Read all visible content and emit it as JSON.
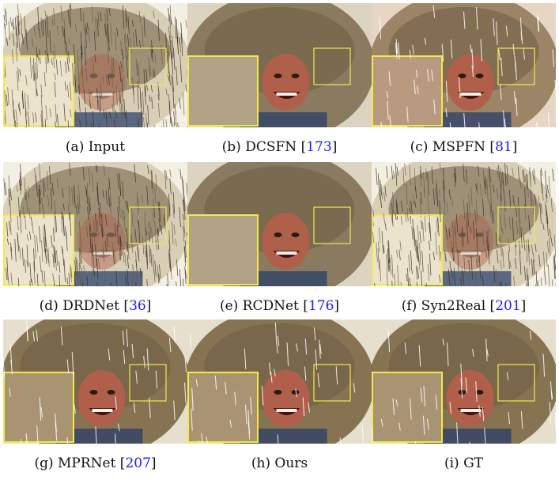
{
  "figure": {
    "panels": [
      {
        "id": "a",
        "label": "(a) Input",
        "name": "Input",
        "citation": "",
        "style": "input"
      },
      {
        "id": "b",
        "label": "(b) DCSFN",
        "name": "DCSFN",
        "citation": "173",
        "style": "smooth"
      },
      {
        "id": "c",
        "label": "(c) MSPFN",
        "name": "MSPFN",
        "citation": "81",
        "style": "artifact"
      },
      {
        "id": "d",
        "label": "(d) DRDNet",
        "name": "DRDNet",
        "citation": "36",
        "style": "input"
      },
      {
        "id": "e",
        "label": "(e) RCDNet",
        "name": "RCDNet",
        "citation": "176",
        "style": "smooth"
      },
      {
        "id": "f",
        "label": "(f) Syn2Real",
        "name": "Syn2Real",
        "citation": "201",
        "style": "input2"
      },
      {
        "id": "g",
        "label": "(g) MPRNet",
        "name": "MPRNet",
        "citation": "207",
        "style": "clean"
      },
      {
        "id": "h",
        "label": "(h) Ours",
        "name": "Ours",
        "citation": "",
        "style": "clean"
      },
      {
        "id": "i",
        "label": "(i) GT",
        "name": "GT",
        "citation": "",
        "style": "gt"
      }
    ],
    "colors": {
      "zoom_box": "#f2e94a",
      "citation": "#1a1aff",
      "fur": "#8a7a60",
      "skin": "#b0604a",
      "rain": "#f7f3e6"
    }
  }
}
